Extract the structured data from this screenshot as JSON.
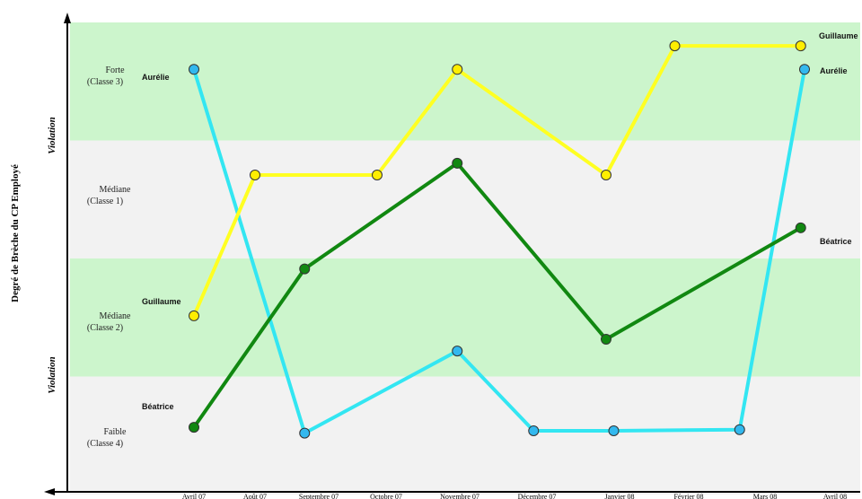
{
  "chart_data": {
    "type": "line",
    "title": "",
    "ylabel": "Degré de Brèche du CP Employé",
    "violation_labels": [
      "Violation",
      "Violation"
    ],
    "bands": [
      {
        "label_line1": "Forte",
        "label_line2": "(Classe 3)",
        "color": "#ccf5cc"
      },
      {
        "label_line1": "Médiane",
        "label_line2": "(Classe 1)",
        "color": "#f2f2f2"
      },
      {
        "label_line1": "Médiane",
        "label_line2": "(Classe 2)",
        "color": "#ccf5cc"
      },
      {
        "label_line1": "Faible",
        "label_line2": "(Classe 4)",
        "color": "#f2f2f2"
      }
    ],
    "x_ticks": [
      "Avril 07",
      "Août 07",
      "Septembre 07",
      "Octobre 07",
      "Novembre 07",
      "Décembre 07",
      "Janvier 08",
      "Février 08",
      "Mars 08",
      "Avril 08"
    ],
    "ylim": [
      0,
      4
    ],
    "series": [
      {
        "name": "Aurélie",
        "line_color": "#33e6f2",
        "marker_color": "#33b8ee",
        "points": [
          [
            0,
            3.6
          ],
          [
            1.45,
            0.5
          ],
          [
            3.45,
            1.2
          ],
          [
            4.45,
            0.52
          ],
          [
            5.5,
            0.52
          ],
          [
            7.15,
            0.53
          ],
          [
            8.0,
            3.6
          ]
        ]
      },
      {
        "name": "Guillaume",
        "line_color": "#ffff22",
        "marker_color": "#ffee00",
        "points": [
          [
            0,
            1.5
          ],
          [
            0.8,
            2.7
          ],
          [
            2.4,
            2.7
          ],
          [
            3.45,
            3.6
          ],
          [
            5.4,
            2.7
          ],
          [
            6.3,
            3.8
          ],
          [
            7.95,
            3.8
          ]
        ]
      },
      {
        "name": "Béatrice",
        "line_color": "#118811",
        "marker_color": "#118811",
        "points": [
          [
            0,
            0.55
          ],
          [
            1.45,
            1.9
          ],
          [
            3.45,
            2.8
          ],
          [
            5.4,
            1.3
          ],
          [
            7.95,
            2.25
          ]
        ]
      }
    ],
    "grid": false
  }
}
